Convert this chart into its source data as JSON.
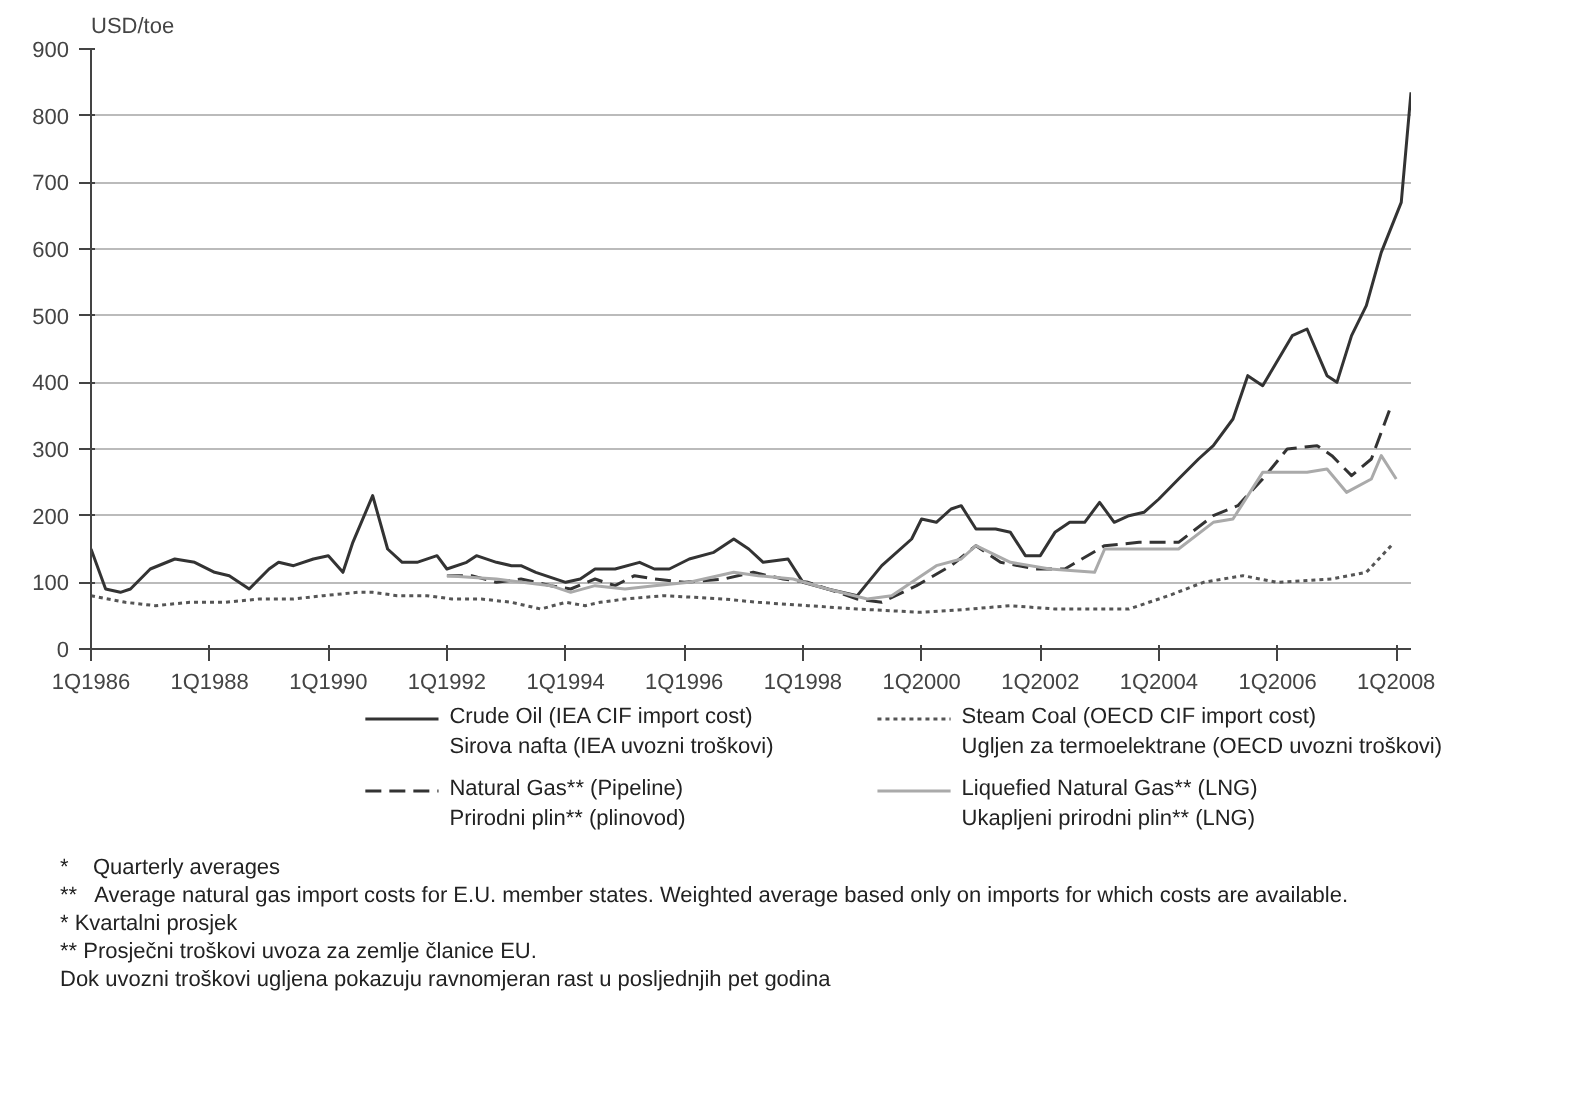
{
  "chart_data": {
    "type": "line",
    "ylabel": "USD/toe",
    "xlim": [
      "1986-01",
      "2008-04"
    ],
    "ylim": [
      0,
      900
    ],
    "xticks": [
      {
        "value": "1986-01",
        "label": "1Q1986"
      },
      {
        "value": "1988-01",
        "label": "1Q1988"
      },
      {
        "value": "1990-01",
        "label": "1Q1990"
      },
      {
        "value": "1992-01",
        "label": "1Q1992"
      },
      {
        "value": "1994-01",
        "label": "1Q1994"
      },
      {
        "value": "1996-01",
        "label": "1Q1996"
      },
      {
        "value": "1998-01",
        "label": "1Q1998"
      },
      {
        "value": "2000-01",
        "label": "1Q2000"
      },
      {
        "value": "2002-01",
        "label": "1Q2002"
      },
      {
        "value": "2004-01",
        "label": "1Q2004"
      },
      {
        "value": "2006-01",
        "label": "1Q2006"
      },
      {
        "value": "2008-01",
        "label": "1Q2008"
      }
    ],
    "yticks": [
      0,
      100,
      200,
      300,
      400,
      500,
      600,
      700,
      800,
      900
    ],
    "grid": "y",
    "legend": "bottom",
    "series": [
      {
        "name": "Crude Oil (IEA CIF import cost)\nSirova nafta  (IEA uvozni troškovi)",
        "color": "#333333",
        "line_style": "solid",
        "x": [
          "1986-01",
          "1986-04",
          "1986-07",
          "1986-09",
          "1987-01",
          "1987-06",
          "1987-10",
          "1988-02",
          "1988-05",
          "1988-09",
          "1989-01",
          "1989-03",
          "1989-06",
          "1989-10",
          "1990-01",
          "1990-04",
          "1990-06",
          "1990-10",
          "1991-01",
          "1991-04",
          "1991-07",
          "1991-11",
          "1992-01",
          "1992-05",
          "1992-07",
          "1992-11",
          "1993-02",
          "1993-04",
          "1993-07",
          "1994-01",
          "1994-04",
          "1994-07",
          "1994-11",
          "1995-04",
          "1995-07",
          "1995-10",
          "1996-02",
          "1996-07",
          "1996-11",
          "1997-02",
          "1997-05",
          "1997-10",
          "1998-01",
          "1998-06",
          "1998-12",
          "1999-05",
          "1999-11",
          "2000-01",
          "2000-04",
          "2000-07",
          "2000-09",
          "2000-12",
          "2001-04",
          "2001-07",
          "2001-10",
          "2002-01",
          "2002-04",
          "2002-07",
          "2002-10",
          "2003-01",
          "2003-04",
          "2003-07",
          "2003-10",
          "2004-01",
          "2004-05",
          "2004-09",
          "2004-12",
          "2005-04",
          "2005-07",
          "2005-10",
          "2005-12",
          "2006-04",
          "2006-07",
          "2006-11",
          "2007-01",
          "2007-04",
          "2007-07",
          "2007-10",
          "2008-02",
          "2008-04"
        ],
        "values": [
          150,
          90,
          85,
          90,
          120,
          135,
          130,
          115,
          110,
          90,
          120,
          130,
          125,
          135,
          140,
          115,
          160,
          230,
          150,
          130,
          130,
          140,
          120,
          130,
          140,
          130,
          125,
          125,
          115,
          100,
          105,
          120,
          120,
          130,
          120,
          120,
          135,
          145,
          165,
          150,
          130,
          135,
          100,
          90,
          80,
          125,
          165,
          195,
          190,
          210,
          215,
          180,
          180,
          175,
          140,
          140,
          175,
          190,
          190,
          220,
          190,
          200,
          205,
          225,
          255,
          285,
          305,
          345,
          410,
          395,
          420,
          470,
          480,
          410,
          400,
          470,
          515,
          595,
          670,
          835
        ]
      },
      {
        "name": "Steam Coal (OECD CIF import cost)\nUgljen za termoelektrane (OECD uvozni troškovi)",
        "color": "#555555",
        "line_style": "dotted",
        "x": [
          "1986-01",
          "1986-08",
          "1987-02",
          "1987-09",
          "1988-04",
          "1988-11",
          "1989-06",
          "1989-12",
          "1990-07",
          "1990-10",
          "1991-03",
          "1991-09",
          "1992-02",
          "1992-08",
          "1993-02",
          "1993-08",
          "1994-01",
          "1994-05",
          "1994-08",
          "1995-01",
          "1995-09",
          "1996-09",
          "1997-04",
          "1998-02",
          "1998-12",
          "2000-01",
          "2000-11",
          "2001-07",
          "2002-04",
          "2002-12",
          "2003-07",
          "2004-03",
          "2004-10",
          "2005-06",
          "2006-01",
          "2006-12",
          "2007-07",
          "2007-12"
        ],
        "values": [
          80,
          70,
          65,
          70,
          70,
          75,
          75,
          80,
          85,
          85,
          80,
          80,
          75,
          75,
          70,
          60,
          70,
          65,
          70,
          75,
          80,
          75,
          70,
          65,
          60,
          55,
          60,
          65,
          60,
          60,
          60,
          80,
          100,
          110,
          100,
          105,
          115,
          155
        ]
      },
      {
        "name": "Natural Gas** (Pipeline)\nPrirodni plin** (plinovod)",
        "color": "#333333",
        "line_style": "dashed",
        "x": [
          "1992-01",
          "1992-06",
          "1992-11",
          "1993-04",
          "1993-10",
          "1994-02",
          "1994-07",
          "1994-11",
          "1995-03",
          "1995-07",
          "1996-01",
          "1996-09",
          "1997-03",
          "1997-09",
          "1998-02",
          "1998-12",
          "1999-05",
          "1999-12",
          "2000-07",
          "2000-12",
          "2001-05",
          "2001-12",
          "2002-06",
          "2003-02",
          "2003-09",
          "2004-05",
          "2004-12",
          "2005-05",
          "2005-10",
          "2006-03",
          "2006-09",
          "2006-12",
          "2007-04",
          "2007-08",
          "2007-12"
        ],
        "values": [
          110,
          110,
          100,
          105,
          95,
          90,
          105,
          95,
          110,
          105,
          100,
          105,
          115,
          105,
          100,
          75,
          70,
          95,
          125,
          155,
          130,
          120,
          120,
          155,
          160,
          160,
          200,
          215,
          255,
          300,
          305,
          290,
          260,
          285,
          365
        ]
      },
      {
        "name": "Liquefied Natural Gas** (LNG)\nUkapljeni prirodni plin** (LNG)",
        "color": "#aaaaaa",
        "line_style": "solid",
        "x": [
          "1992-01",
          "1992-11",
          "1993-10",
          "1994-02",
          "1994-07",
          "1995-01",
          "1995-07",
          "1996-02",
          "1996-11",
          "1997-04",
          "1997-11",
          "1998-06",
          "1999-02",
          "1999-07",
          "2000-04",
          "2000-09",
          "2000-12",
          "2001-07",
          "2002-03",
          "2002-12",
          "2003-02",
          "2003-09",
          "2004-05",
          "2004-12",
          "2005-04",
          "2005-10",
          "2006-07",
          "2006-11",
          "2007-03",
          "2007-08",
          "2007-10",
          "2008-01"
        ],
        "values": [
          110,
          105,
          95,
          85,
          95,
          90,
          95,
          100,
          115,
          110,
          105,
          90,
          75,
          80,
          125,
          135,
          155,
          130,
          120,
          115,
          150,
          150,
          150,
          190,
          195,
          265,
          265,
          270,
          235,
          255,
          290,
          255
        ]
      }
    ],
    "annotations": [
      "*    Quarterly averages",
      "**   Average natural gas import costs for E.U. member states. Weighted average based only on imports for which costs are available.",
      "* Kvartalni prosjek",
      "** Prosječni troškovi uvoza za zemlje članice EU.",
      "Dok uvozni troškovi ugljena pokazuju ravnomjeran rast u posljednjih pet godina"
    ]
  }
}
